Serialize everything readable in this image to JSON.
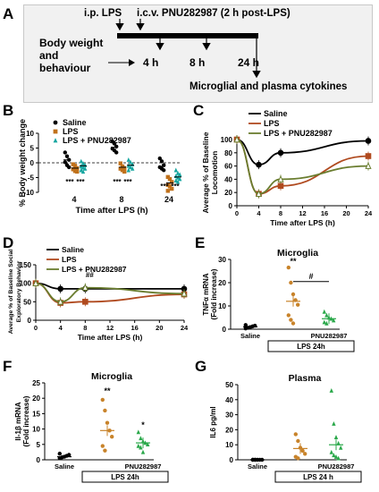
{
  "panels": {
    "a": "A",
    "b": "B",
    "c": "C",
    "d": "D",
    "e": "E",
    "f": "F",
    "g": "G"
  },
  "schema": {
    "ip_lps": "i.p. LPS",
    "icv": "i.c.v. PNU282987 (2 h post-LPS)",
    "body_weight": "Body weight",
    "and_behaviour": "and",
    "behaviour": "behaviour",
    "t4": "4 h",
    "t8": "8 h",
    "t24": "24 h",
    "cytokines": "Microglial and plasma cytokines"
  },
  "colors": {
    "saline": "#000000",
    "lps": "#c0711b",
    "pnu_b": "#16a6a0",
    "pnu_green": "#3d8a2a",
    "lps_line": "#b04a1f",
    "pnu_line": "#6a7d2f",
    "marker_lps": "#c8832a",
    "marker_pnu": "#2aa84a"
  },
  "chart_data": [
    {
      "panel": "B",
      "type": "scatter",
      "ylabel": "% Body weight change",
      "xlabel": "Time after LPS (h)",
      "categories": [
        "4",
        "8",
        "24"
      ],
      "ylim": [
        -10,
        10
      ],
      "yticks": [
        "10",
        "5",
        "0",
        "-5",
        "-10"
      ],
      "legend": [
        "Saline",
        "LPS",
        "LPS + PNU282987"
      ],
      "series": [
        {
          "name": "Saline",
          "means": [
            1.0,
            5.3,
            -1.2
          ],
          "points": [
            [
              3.5,
              2.2,
              1.0,
              0.2,
              -0.8,
              -1.5
            ],
            [
              7.2,
              6.5,
              5.5,
              4.8,
              4.2,
              3.5
            ],
            [
              1.5,
              0.5,
              -0.8,
              -1.5,
              -2.0,
              -2.5
            ]
          ]
        },
        {
          "name": "LPS",
          "means": [
            -1.8,
            -1.5,
            -6.8
          ],
          "points": [
            [
              -0.5,
              -1.0,
              -1.8,
              -2.2,
              -2.8,
              -3.0
            ],
            [
              -0.2,
              -1.2,
              -1.8,
              -2.0,
              -2.5,
              -3.0
            ],
            [
              -4.8,
              -5.5,
              -6.5,
              -7.5,
              -8.0,
              -8.8,
              -9.5
            ]
          ]
        },
        {
          "name": "LPS + PNU282987",
          "means": [
            -1.0,
            -0.8,
            -4.8
          ],
          "points": [
            [
              0.5,
              -0.2,
              -0.8,
              -1.2,
              -1.6,
              -2.0,
              -2.5,
              -3.0
            ],
            [
              1.0,
              0.2,
              -0.5,
              -1.0,
              -1.5,
              -2.0,
              -2.5
            ],
            [
              -2.5,
              -3.5,
              -4.0,
              -4.5,
              -5.0,
              -5.5,
              -6.0,
              -6.5
            ]
          ]
        }
      ],
      "annotations": [
        "***",
        "***",
        "***",
        "***",
        "***",
        "***"
      ]
    },
    {
      "panel": "C",
      "type": "line",
      "ylabel": "Average % of Baseline Locomotion",
      "xlabel": "Time after LPS (h)",
      "x": [
        0,
        4,
        8,
        24
      ],
      "xticks": [
        "0",
        "4",
        "8",
        "12",
        "16",
        "20",
        "24"
      ],
      "ylim": [
        0,
        100
      ],
      "yticks": [
        "100",
        "80",
        "60",
        "40",
        "20",
        "0"
      ],
      "legend": [
        "Saline",
        "LPS",
        "LPS + PNU282987"
      ],
      "series": [
        {
          "name": "Saline",
          "values": [
            100,
            62,
            80,
            98
          ]
        },
        {
          "name": "LPS",
          "values": [
            100,
            18,
            30,
            75
          ]
        },
        {
          "name": "LPS + PNU282987",
          "values": [
            100,
            18,
            40,
            60
          ]
        }
      ]
    },
    {
      "panel": "D",
      "type": "line",
      "ylabel": "Average % of Baseline Social Exploratory Behavior",
      "xlabel": "Time after LPS (h)",
      "x": [
        0,
        4,
        8,
        24
      ],
      "xticks": [
        "0",
        "4",
        "8",
        "12",
        "16",
        "20",
        "24"
      ],
      "ylim": [
        0,
        150
      ],
      "yticks": [
        "150",
        "100",
        "50",
        "0"
      ],
      "legend": [
        "Saline",
        "LPS",
        "LPS + PNU282987"
      ],
      "series": [
        {
          "name": "Saline",
          "values": [
            100,
            85,
            85,
            85
          ]
        },
        {
          "name": "LPS",
          "values": [
            100,
            47,
            50,
            70
          ]
        },
        {
          "name": "LPS + PNU282987",
          "values": [
            100,
            50,
            88,
            72
          ]
        }
      ],
      "annotations": [
        "##"
      ]
    },
    {
      "panel": "E",
      "type": "scatter",
      "title": "Microglia",
      "ylabel": "TNFα mRNA",
      "ylabel2": "(Fold increase)",
      "categories": [
        "Saline",
        "",
        "PNU282987"
      ],
      "group_label": "LPS 24h",
      "ylim": [
        0,
        30
      ],
      "yticks": [
        "30",
        "20",
        "10",
        "0"
      ],
      "series": [
        {
          "name": "Saline",
          "mean": 1.0,
          "points": [
            0.3,
            0.6,
            0.9,
            1.2,
            1.5,
            1.8
          ]
        },
        {
          "name": "LPS",
          "mean": 12.0,
          "points": [
            26.5,
            20.0,
            15.0,
            12.5,
            10.5,
            6.0,
            4.0,
            2.5
          ]
        },
        {
          "name": "PNU282987",
          "mean": 4.5,
          "points": [
            7.5,
            6.0,
            5.0,
            4.5,
            3.8,
            3.0,
            2.5
          ]
        }
      ],
      "annotations": [
        "**",
        "#"
      ]
    },
    {
      "panel": "F",
      "type": "scatter",
      "title": "Microglia",
      "ylabel": "Il-1β mRNA",
      "ylabel2": "(Fold increase)",
      "categories": [
        "Saline",
        "",
        "PNU282987"
      ],
      "group_label": "LPS 24h",
      "ylim": [
        0,
        25
      ],
      "yticks": [
        "25",
        "20",
        "15",
        "10",
        "5",
        "0"
      ],
      "series": [
        {
          "name": "Saline",
          "mean": 1.0,
          "points": [
            0.5,
            0.8,
            1.0,
            1.3,
            1.6,
            2.0
          ]
        },
        {
          "name": "LPS",
          "mean": 9.5,
          "points": [
            19.5,
            16.0,
            12.0,
            9.5,
            7.5,
            4.5,
            3.0
          ]
        },
        {
          "name": "PNU282987",
          "mean": 5.5,
          "points": [
            9.0,
            7.0,
            6.0,
            5.5,
            5.0,
            4.5,
            4.0,
            2.5
          ]
        }
      ],
      "annotations": [
        "**",
        "*"
      ]
    },
    {
      "panel": "G",
      "type": "scatter",
      "title": "Plasma",
      "ylabel": "IL6 pg/ml",
      "categories": [
        "Saline",
        "",
        "PNU282987"
      ],
      "group_label": "LPS 24 h",
      "ylim": [
        0,
        50
      ],
      "yticks": [
        "50",
        "40",
        "30",
        "20",
        "10",
        "0"
      ],
      "series": [
        {
          "name": "Saline",
          "mean": 0.0,
          "points": [
            0,
            0,
            0,
            0,
            0,
            0,
            0
          ]
        },
        {
          "name": "LPS",
          "mean": 7.5,
          "points": [
            17.0,
            12.5,
            8.0,
            6.0,
            4.0,
            2.0,
            1.0
          ]
        },
        {
          "name": "PNU282987",
          "mean": 10.0,
          "points": [
            46.0,
            24.0,
            15.0,
            11.0,
            8.0,
            5.0,
            3.0,
            2.0,
            1.0
          ]
        }
      ]
    }
  ]
}
